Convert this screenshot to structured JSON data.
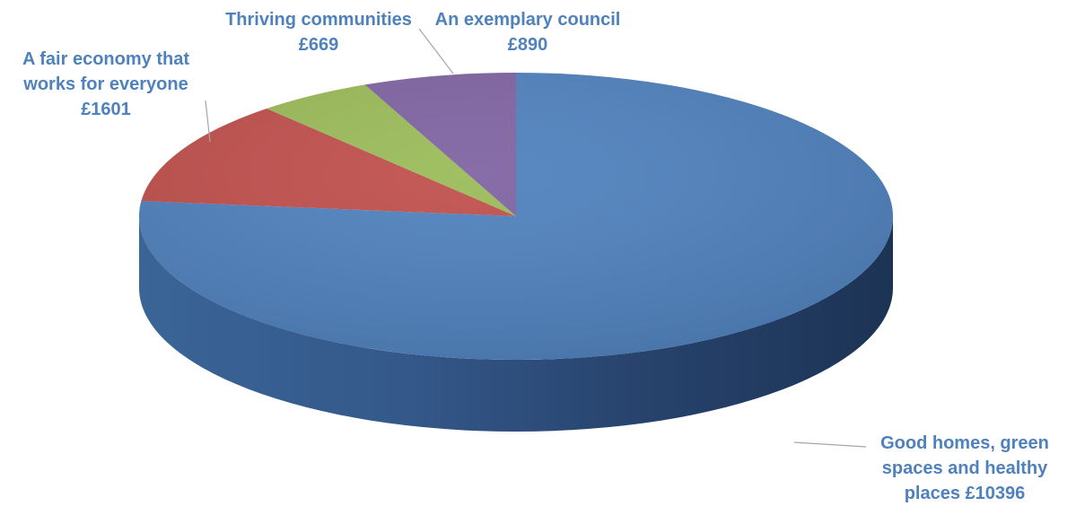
{
  "chart_data": {
    "type": "pie",
    "style": "3d",
    "title": "",
    "currency": "£",
    "slices": [
      {
        "label": "Good homes, green spaces and healthy places",
        "value": 10396,
        "color": "#4F81BD",
        "data_label_lines": [
          "Good homes, green",
          "spaces and healthy",
          "places £10396"
        ]
      },
      {
        "label": "A fair economy that works for everyone",
        "value": 1601,
        "color": "#C0504D",
        "data_label_lines": [
          "A fair economy that",
          "works for everyone",
          "£1601"
        ]
      },
      {
        "label": "Thriving communities",
        "value": 669,
        "color": "#9BBB59",
        "data_label_lines": [
          "Thriving communities",
          "£669"
        ]
      },
      {
        "label": "An exemplary council",
        "value": 890,
        "color": "#8064A2",
        "data_label_lines": [
          "An exemplary council",
          "£890"
        ]
      }
    ],
    "label_color": "#4F81BD",
    "legend": "none"
  }
}
